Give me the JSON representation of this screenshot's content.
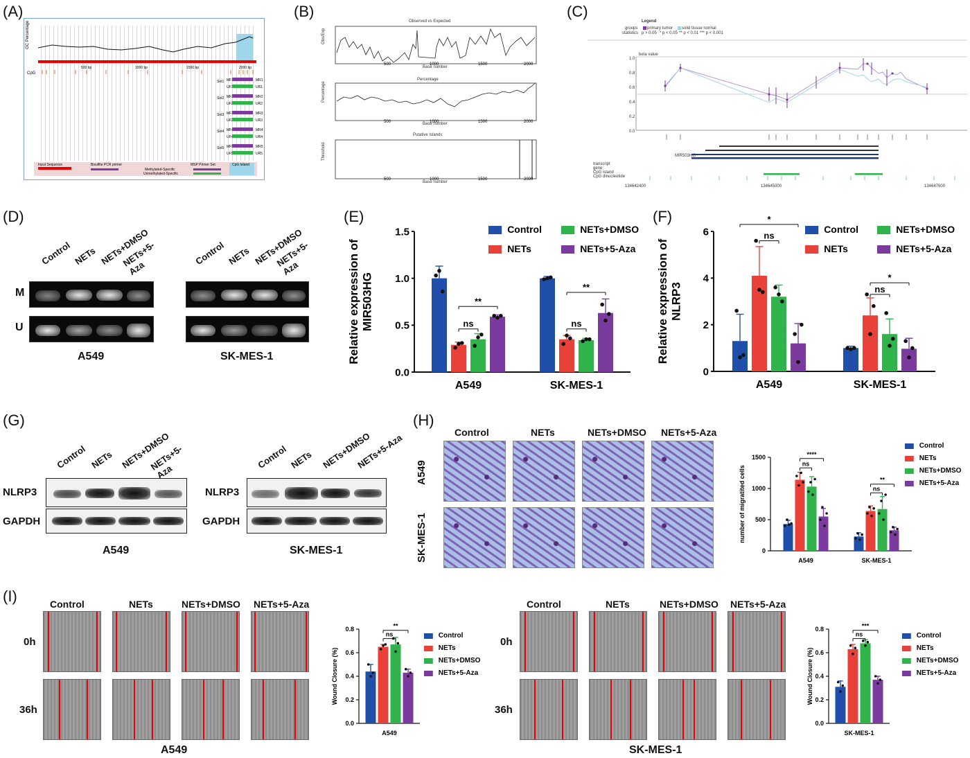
{
  "panel_letters": [
    "(A)",
    "(B)",
    "(C)",
    "(D)",
    "(E)",
    "(F)",
    "(G)",
    "(H)",
    "(I)"
  ],
  "colors": {
    "control": "#1f4fa8",
    "nets": "#e8413a",
    "dmso": "#2fb34a",
    "aza": "#7b3a9e"
  },
  "panelA": {
    "ylabel": "GC Percentage",
    "ticks": [
      "500 bp",
      "1000 bp",
      "1500 bp",
      "2000 bp"
    ],
    "cpg_label": "CpG",
    "sets": [
      "Set1",
      "Set2",
      "Set3",
      "Set4",
      "Set5"
    ],
    "primers": [
      [
        "MF1",
        "MR1",
        "UF1",
        "UR1"
      ],
      [
        "MF2",
        "MR2",
        "UF2",
        "UR2"
      ],
      [
        "MF3",
        "MR3",
        "UF3",
        "UR3"
      ],
      [
        "MF4",
        "MR4",
        "UF4",
        "UR4"
      ],
      [
        "MF5",
        "MR5",
        "UF5",
        "UR5"
      ]
    ],
    "legend": {
      "input": "Input Sequence",
      "bisulfite": "Bisulfite PCR primer",
      "msp": "MSP Primer Set",
      "methylated": "Methylated-Specific",
      "unmethylated": "Unmethylated-Specific",
      "island": "CpG Island"
    }
  },
  "panelB": {
    "titles": [
      "Observed vs Expected",
      "Percentage",
      "Putative Islands"
    ],
    "ylabels": [
      "Obs/Exp",
      "Percentage",
      "Threshold"
    ],
    "xlabel": "Base number",
    "xticks": [
      "500",
      "1000",
      "1500",
      "2000"
    ]
  },
  "panelC": {
    "legend_title": "Legend",
    "groups_label": "groups",
    "statistics_label": "statistics",
    "groups": [
      "primary tumor",
      "solid tissue normal"
    ],
    "stats": [
      "p > 0.05",
      "* p < 0.05",
      "** p < 0.01",
      "*** p < 0.001"
    ],
    "beta_label": "beta value",
    "yticks": [
      "1.0",
      "0.8",
      "0.6",
      "0.4",
      "0.2",
      "0.0"
    ],
    "gene": "MIR503HG",
    "tracks": [
      "transcript",
      "gene",
      "CpG island",
      "CpG dinucleotide"
    ],
    "coords": [
      "134642400",
      "134645000",
      "134647600"
    ]
  },
  "panelD": {
    "lanes": [
      "Control",
      "NETs",
      "NETs+DMSO",
      "NETs+5-Aza"
    ],
    "rows": [
      "M",
      "U"
    ],
    "cells": [
      "A549",
      "SK-MES-1"
    ]
  },
  "panelG": {
    "lanes": [
      "Control",
      "NETs",
      "NETs+DMSO",
      "NETs+5-Aza"
    ],
    "rows": [
      "NLRP3",
      "GAPDH"
    ],
    "cells": [
      "A549",
      "SK-MES-1"
    ]
  },
  "panelH": {
    "conditions": [
      "Control",
      "NETs",
      "NETs+DMSO",
      "NETs+5-Aza"
    ],
    "cells": [
      "A549",
      "SK-MES-1"
    ]
  },
  "panelI": {
    "conditions": [
      "Control",
      "NETs",
      "NETs+DMSO",
      "NETs+5-Aza"
    ],
    "times": [
      "0h",
      "36h"
    ],
    "cells": [
      "A549",
      "SK-MES-1"
    ]
  },
  "chart_data": [
    {
      "id": "E",
      "type": "bar",
      "categories": [
        "A549",
        "SK-MES-1"
      ],
      "series": [
        {
          "name": "Control",
          "values": [
            1.0,
            1.0
          ]
        },
        {
          "name": "NETs",
          "values": [
            0.29,
            0.35
          ]
        },
        {
          "name": "NETs+DMSO",
          "values": [
            0.35,
            0.34
          ]
        },
        {
          "name": "NETs+5-Aza",
          "values": [
            0.59,
            0.63
          ]
        }
      ],
      "errors": [
        [
          0.13,
          0.02
        ],
        [
          0.03,
          0.04
        ],
        [
          0.06,
          0.02
        ],
        [
          0.02,
          0.15
        ]
      ],
      "points": [
        [
          [
            1.03,
            1.08,
            0.86
          ],
          [
            0.99,
            1.0,
            1.01
          ]
        ],
        [
          [
            0.26,
            0.3,
            0.31
          ],
          [
            0.3,
            0.39,
            0.36
          ]
        ],
        [
          [
            0.28,
            0.37,
            0.4
          ],
          [
            0.33,
            0.35,
            0.35
          ]
        ],
        [
          [
            0.6,
            0.58,
            0.6
          ],
          [
            0.72,
            0.55,
            0.62
          ]
        ]
      ],
      "ylabel": "Relative expression of MIR503HG",
      "ylim": [
        0,
        1.5
      ],
      "yticks": [
        "0.0",
        "0.5",
        "1.0",
        "1.5"
      ],
      "sig": [
        {
          "group": 0,
          "from": 1,
          "to": 3,
          "y": 0.7,
          "label": "**"
        },
        {
          "group": 0,
          "from": 1,
          "to": 2,
          "y": 0.46,
          "label": "ns"
        },
        {
          "group": 1,
          "from": 1,
          "to": 3,
          "y": 0.85,
          "label": "**"
        },
        {
          "group": 1,
          "from": 1,
          "to": 2,
          "y": 0.46,
          "label": "ns"
        }
      ],
      "legend": "top-right"
    },
    {
      "id": "F",
      "type": "bar",
      "categories": [
        "A549",
        "SK-MES-1"
      ],
      "series": [
        {
          "name": "Control",
          "values": [
            1.3,
            1.0
          ]
        },
        {
          "name": "NETs",
          "values": [
            4.1,
            2.4
          ]
        },
        {
          "name": "NETs+DMSO",
          "values": [
            3.2,
            1.6
          ]
        },
        {
          "name": "NETs+5-Aza",
          "values": [
            1.2,
            0.97
          ]
        }
      ],
      "errors": [
        [
          1.15,
          0.08
        ],
        [
          1.25,
          0.75
        ],
        [
          0.5,
          0.65
        ],
        [
          0.85,
          0.45
        ]
      ],
      "points": [
        [
          [
            2.6,
            0.6,
            0.7
          ],
          [
            1.0,
            0.95,
            1.0
          ]
        ],
        [
          [
            5.6,
            3.5,
            3.4
          ],
          [
            3.3,
            1.6,
            2.8
          ]
        ],
        [
          [
            3.6,
            3.3,
            3.0
          ],
          [
            2.5,
            1.1,
            1.4
          ]
        ],
        [
          [
            1.6,
            0.4,
            2.0
          ],
          [
            1.3,
            0.6,
            1.0
          ]
        ]
      ],
      "ylabel": "Relative expression of NLRP3",
      "ylim": [
        0,
        6
      ],
      "yticks": [
        "0",
        "2",
        "4",
        "6"
      ],
      "sig": [
        {
          "group": 0,
          "from": 0,
          "to": 3,
          "y": 6.3,
          "label": "*"
        },
        {
          "group": 0,
          "from": 1,
          "to": 2,
          "y": 5.6,
          "label": "ns"
        },
        {
          "group": 1,
          "from": 1,
          "to": 3,
          "y": 3.8,
          "label": "*"
        },
        {
          "group": 1,
          "from": 1,
          "to": 2,
          "y": 3.3,
          "label": "ns"
        }
      ],
      "legend": "top-right"
    },
    {
      "id": "H",
      "type": "bar",
      "categories": [
        "A549",
        "SK-MES-1"
      ],
      "series": [
        {
          "name": "Control",
          "values": [
            430,
            230
          ]
        },
        {
          "name": "NETs",
          "values": [
            1140,
            640
          ]
        },
        {
          "name": "NETs+DMSO",
          "values": [
            1030,
            670
          ]
        },
        {
          "name": "NETs+5-Aza",
          "values": [
            550,
            330
          ]
        }
      ],
      "errors": [
        [
          60,
          60
        ],
        [
          120,
          80
        ],
        [
          160,
          200
        ],
        [
          130,
          50
        ]
      ],
      "points": [
        [
          [
            400,
            500,
            420,
            440
          ],
          [
            200,
            280,
            180,
            260
          ]
        ],
        [
          [
            1200,
            1050,
            1250,
            1100
          ],
          [
            600,
            700,
            560,
            680
          ]
        ],
        [
          [
            950,
            1100,
            900,
            1150
          ],
          [
            600,
            800,
            500,
            900
          ]
        ],
        [
          [
            500,
            700,
            400,
            600
          ],
          [
            300,
            380,
            260,
            350
          ]
        ]
      ],
      "ylabel": "number of migratited cells",
      "ylim": [
        0,
        1500
      ],
      "yticks": [
        "0",
        "500",
        "1000",
        "1500"
      ],
      "sig": [
        {
          "group": 0,
          "from": 1,
          "to": 3,
          "y": 1480,
          "label": "****"
        },
        {
          "group": 0,
          "from": 1,
          "to": 2,
          "y": 1330,
          "label": "ns"
        },
        {
          "group": 1,
          "from": 1,
          "to": 3,
          "y": 1070,
          "label": "**"
        },
        {
          "group": 1,
          "from": 1,
          "to": 2,
          "y": 930,
          "label": "ns"
        }
      ],
      "legend": "right"
    },
    {
      "id": "I1",
      "type": "bar",
      "categories": [
        "A549"
      ],
      "series": [
        {
          "name": "Control",
          "values": [
            0.44
          ]
        },
        {
          "name": "NETs",
          "values": [
            0.65
          ]
        },
        {
          "name": "NETs+DMSO",
          "values": [
            0.67
          ]
        },
        {
          "name": "NETs+5-Aza",
          "values": [
            0.43
          ]
        }
      ],
      "errors": [
        [
          0.06
        ],
        [
          0.02
        ],
        [
          0.06
        ],
        [
          0.03
        ]
      ],
      "points": [
        [
          [
            0.5,
            0.4,
            0.43
          ]
        ],
        [
          [
            0.63,
            0.66,
            0.67
          ]
        ],
        [
          [
            0.72,
            0.61,
            0.68
          ]
        ],
        [
          [
            0.46,
            0.4,
            0.43
          ]
        ]
      ],
      "ylabel": "Wound Closure (%)",
      "ylim": [
        0,
        0.8
      ],
      "yticks": [
        "0.0",
        "0.2",
        "0.4",
        "0.6",
        "0.8"
      ],
      "sig": [
        {
          "group": 0,
          "from": 1,
          "to": 3,
          "y": 0.79,
          "label": "**"
        },
        {
          "group": 0,
          "from": 1,
          "to": 2,
          "y": 0.72,
          "label": "ns"
        }
      ],
      "legend": "right"
    },
    {
      "id": "I2",
      "type": "bar",
      "categories": [
        "SK-MES-1"
      ],
      "series": [
        {
          "name": "Control",
          "values": [
            0.31
          ]
        },
        {
          "name": "NETs",
          "values": [
            0.63
          ]
        },
        {
          "name": "NETs+DMSO",
          "values": [
            0.68
          ]
        },
        {
          "name": "NETs+5-Aza",
          "values": [
            0.37
          ]
        }
      ],
      "errors": [
        [
          0.05
        ],
        [
          0.04
        ],
        [
          0.03
        ],
        [
          0.03
        ]
      ],
      "points": [
        [
          [
            0.35,
            0.27,
            0.32
          ]
        ],
        [
          [
            0.66,
            0.59,
            0.64
          ]
        ],
        [
          [
            0.7,
            0.66,
            0.69
          ]
        ],
        [
          [
            0.4,
            0.34,
            0.37
          ]
        ]
      ],
      "ylabel": "Wound Closure (%)",
      "ylim": [
        0,
        0.8
      ],
      "yticks": [
        "0.0",
        "0.2",
        "0.4",
        "0.6",
        "0.8"
      ],
      "sig": [
        {
          "group": 0,
          "from": 1,
          "to": 3,
          "y": 0.79,
          "label": "***"
        },
        {
          "group": 0,
          "from": 1,
          "to": 2,
          "y": 0.72,
          "label": "ns"
        }
      ],
      "legend": "right"
    }
  ]
}
